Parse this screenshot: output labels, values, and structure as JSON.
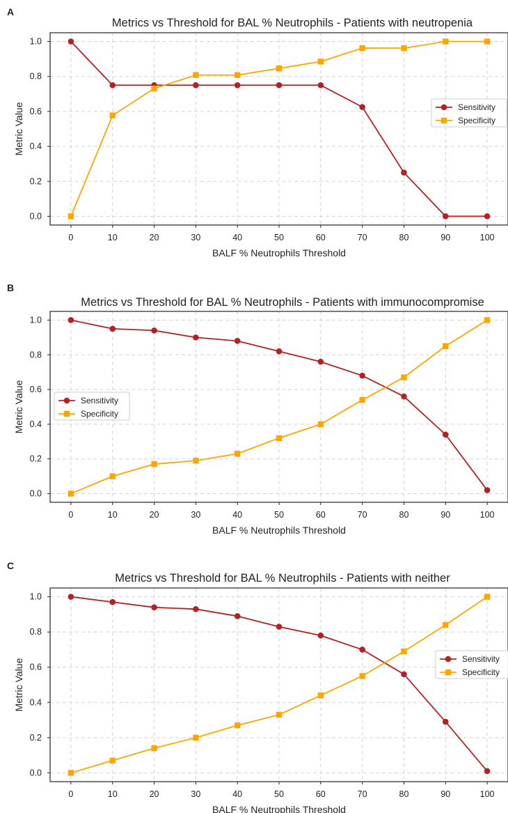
{
  "chart_data": [
    {
      "panel": "A",
      "type": "line",
      "title": "Metrics vs Threshold for BAL % Neutrophils - Patients with neutropenia",
      "xlabel": "BALF % Neutrophils Threshold",
      "ylabel": "Metric Value",
      "x": [
        0,
        10,
        20,
        30,
        40,
        50,
        60,
        70,
        80,
        90,
        100
      ],
      "xlim": [
        -5,
        105
      ],
      "ylim": [
        -0.05,
        1.05
      ],
      "yticks": [
        "0.0",
        "0.2",
        "0.4",
        "0.6",
        "0.8",
        "1.0"
      ],
      "grid": true,
      "legend_position": "center-right",
      "series": [
        {
          "name": "Sensitivity",
          "marker": "circle",
          "color": "#b22222",
          "values": [
            1.0,
            0.75,
            0.75,
            0.75,
            0.75,
            0.75,
            0.75,
            0.625,
            0.25,
            0.0,
            0.0
          ]
        },
        {
          "name": "Specificity",
          "marker": "square",
          "color": "#ffa500",
          "values": [
            0.0,
            0.577,
            0.731,
            0.808,
            0.808,
            0.846,
            0.885,
            0.962,
            0.962,
            1.0,
            1.0
          ]
        }
      ]
    },
    {
      "panel": "B",
      "type": "line",
      "title": "Metrics vs Threshold for BAL % Neutrophils - Patients with immunocompromise",
      "xlabel": "BALF % Neutrophils Threshold",
      "ylabel": "Metric Value",
      "x": [
        0,
        10,
        20,
        30,
        40,
        50,
        60,
        70,
        80,
        90,
        100
      ],
      "xlim": [
        -5,
        105
      ],
      "ylim": [
        -0.05,
        1.05
      ],
      "yticks": [
        "0.0",
        "0.2",
        "0.4",
        "0.6",
        "0.8",
        "1.0"
      ],
      "grid": true,
      "legend_position": "center-left",
      "series": [
        {
          "name": "Sensitivity",
          "marker": "circle",
          "color": "#b22222",
          "values": [
            1.0,
            0.95,
            0.94,
            0.9,
            0.88,
            0.82,
            0.76,
            0.68,
            0.56,
            0.34,
            0.02
          ]
        },
        {
          "name": "Specificity",
          "marker": "square",
          "color": "#ffa500",
          "values": [
            0.0,
            0.1,
            0.17,
            0.19,
            0.23,
            0.32,
            0.4,
            0.54,
            0.67,
            0.85,
            1.0
          ]
        }
      ]
    },
    {
      "panel": "C",
      "type": "line",
      "title": "Metrics vs Threshold for BAL % Neutrophils - Patients with neither",
      "xlabel": "BALF % Neutrophils Threshold",
      "ylabel": "Metric Value",
      "x": [
        0,
        10,
        20,
        30,
        40,
        50,
        60,
        70,
        80,
        90,
        100
      ],
      "xlim": [
        -5,
        105
      ],
      "ylim": [
        -0.05,
        1.05
      ],
      "yticks": [
        "0.0",
        "0.2",
        "0.4",
        "0.6",
        "0.8",
        "1.0"
      ],
      "grid": true,
      "legend_position": "center-right",
      "series": [
        {
          "name": "Sensitivity",
          "marker": "circle",
          "color": "#b22222",
          "values": [
            1.0,
            0.97,
            0.94,
            0.93,
            0.89,
            0.83,
            0.78,
            0.7,
            0.56,
            0.29,
            0.01
          ]
        },
        {
          "name": "Specificity",
          "marker": "square",
          "color": "#ffa500",
          "values": [
            0.0,
            0.07,
            0.14,
            0.2,
            0.27,
            0.33,
            0.44,
            0.55,
            0.69,
            0.84,
            1.0
          ]
        }
      ]
    }
  ]
}
